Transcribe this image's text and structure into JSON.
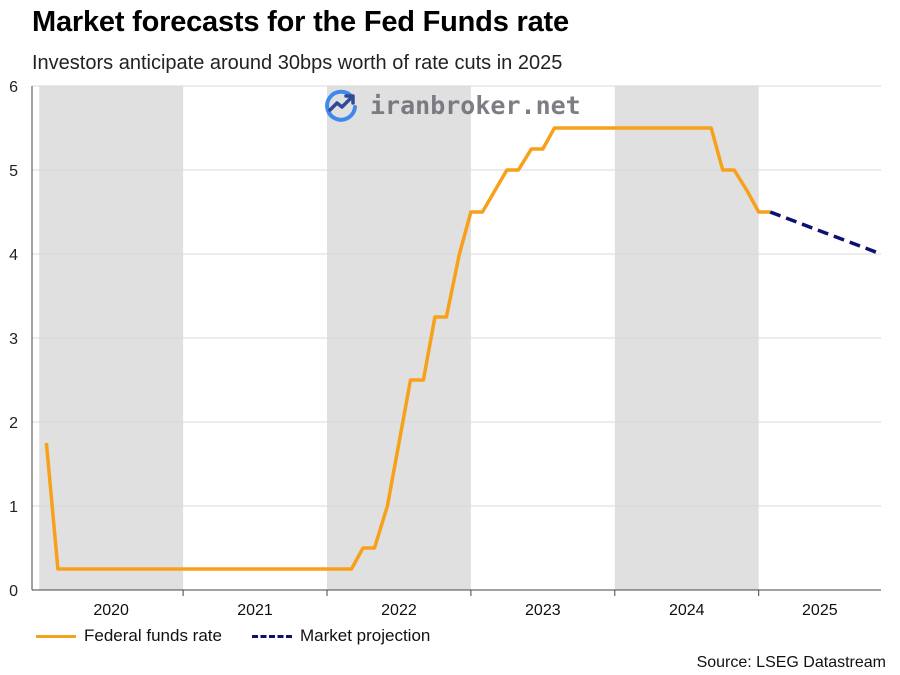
{
  "chart_data": {
    "type": "line",
    "title": "Market forecasts for the Fed Funds rate",
    "subtitle": "Investors anticipate around 30bps worth of rate cuts in 2025",
    "xlabel": "",
    "ylabel": "",
    "ylim": [
      0,
      6
    ],
    "xlim": [
      2019.95,
      2025.85
    ],
    "y_ticks": [
      0,
      1,
      2,
      3,
      4,
      5,
      6
    ],
    "x_categories": [
      "2020",
      "2021",
      "2022",
      "2023",
      "2024",
      "2025"
    ],
    "shaded_years": [
      "2020",
      "2022",
      "2024"
    ],
    "grid": true,
    "legend_position": "bottom-left",
    "series": [
      {
        "name": "Federal funds rate",
        "color": "#F7A11A",
        "style": "solid",
        "points": [
          [
            2020.05,
            1.75
          ],
          [
            2020.13,
            0.25
          ],
          [
            2022.17,
            0.25
          ],
          [
            2022.25,
            0.5
          ],
          [
            2022.33,
            0.5
          ],
          [
            2022.42,
            1.0
          ],
          [
            2022.58,
            2.5
          ],
          [
            2022.67,
            2.5
          ],
          [
            2022.75,
            3.25
          ],
          [
            2022.83,
            3.25
          ],
          [
            2022.92,
            4.0
          ],
          [
            2023.0,
            4.5
          ],
          [
            2023.08,
            4.5
          ],
          [
            2023.25,
            5.0
          ],
          [
            2023.33,
            5.0
          ],
          [
            2023.42,
            5.25
          ],
          [
            2023.5,
            5.25
          ],
          [
            2023.58,
            5.5
          ],
          [
            2024.67,
            5.5
          ],
          [
            2024.75,
            5.0
          ],
          [
            2024.83,
            5.0
          ],
          [
            2024.92,
            4.75
          ],
          [
            2025.0,
            4.5
          ],
          [
            2025.08,
            4.5
          ]
        ]
      },
      {
        "name": "Market projection",
        "color": "#0A1172",
        "style": "dashed",
        "points": [
          [
            2025.08,
            4.5
          ],
          [
            2025.85,
            4.0
          ]
        ]
      }
    ]
  },
  "watermark": {
    "text": "iranbroker.net",
    "icon": "trend-chart-icon",
    "color": "#2F80ED"
  },
  "source": "Source: LSEG Datastream"
}
